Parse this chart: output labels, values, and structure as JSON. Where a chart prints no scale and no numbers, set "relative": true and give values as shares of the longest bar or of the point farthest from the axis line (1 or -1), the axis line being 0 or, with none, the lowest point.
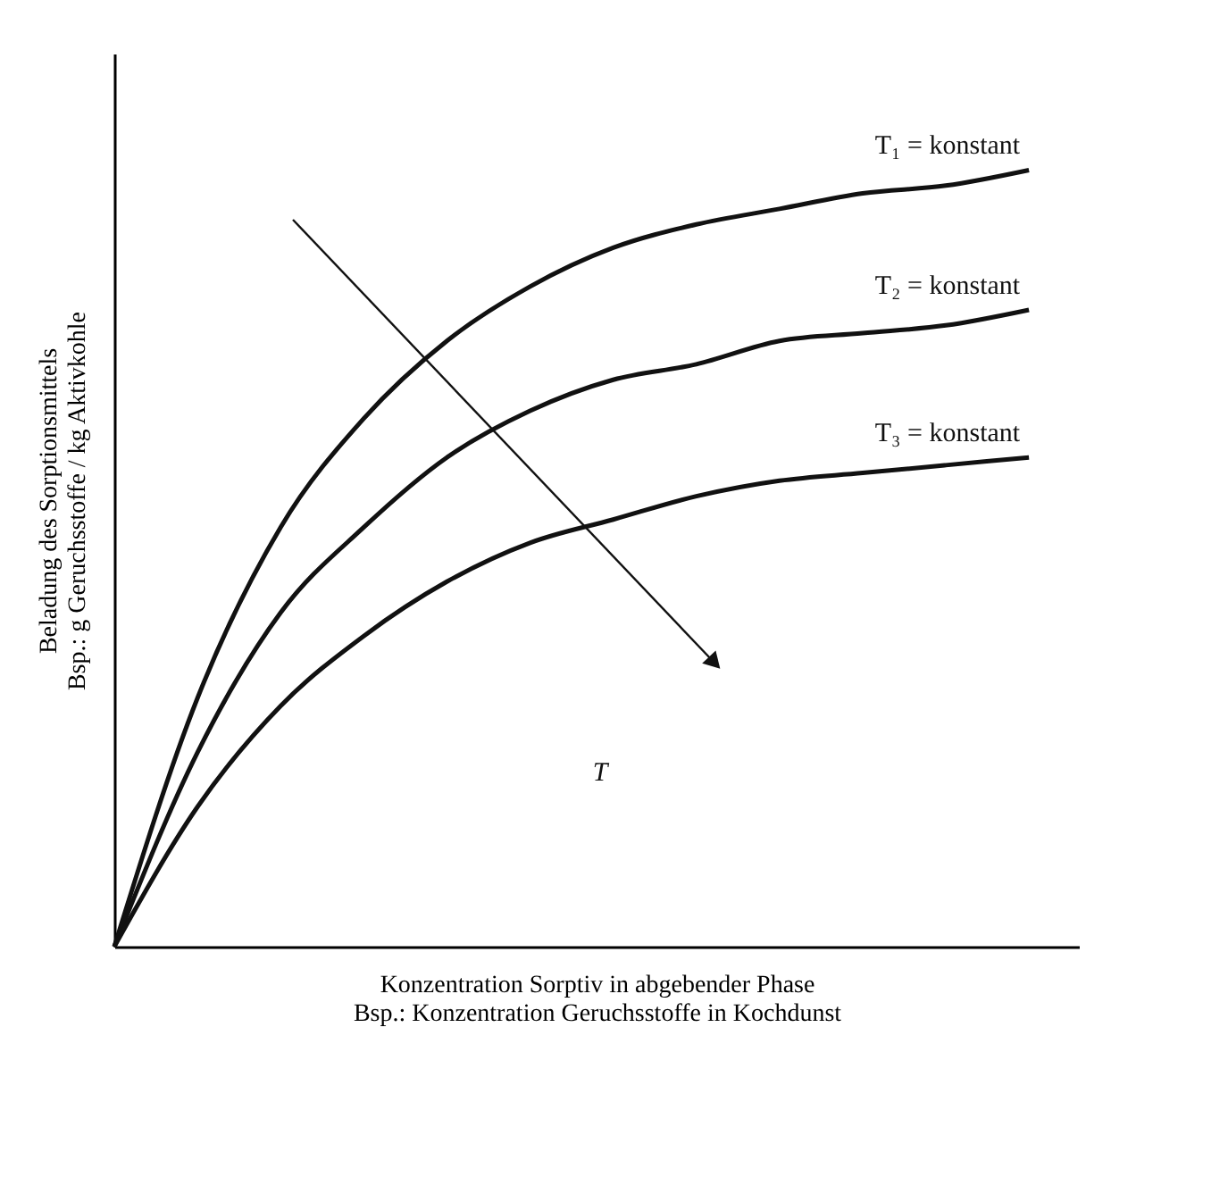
{
  "chart_data": {
    "type": "line",
    "relative": true,
    "xlabel": "Konzentration Sorptiv in abgebender Phase\nBsp.: Konzentration Geruchsstoffe in Kochdunst",
    "ylabel": "Beladung des Sorptionsmittels\nBsp.: g Geruchsstoffe / kg Aktivkohle",
    "categories": [
      null,
      null,
      null,
      null,
      null,
      null,
      null,
      null,
      null,
      null,
      null,
      null
    ],
    "series": [
      {
        "name": "T₁ = konstant",
        "color": "#111111",
        "values": [
          0,
          0.32,
          0.54,
          0.68,
          0.78,
          0.85,
          0.9,
          0.93,
          0.95,
          0.97,
          0.98,
          1.0
        ]
      },
      {
        "name": "T₂ = konstant",
        "color": "#111111",
        "values": [
          0,
          0.25,
          0.43,
          0.54,
          0.63,
          0.69,
          0.73,
          0.75,
          0.78,
          0.79,
          0.8,
          0.82
        ]
      },
      {
        "name": "T₃ = konstant",
        "color": "#111111",
        "values": [
          0,
          0.18,
          0.31,
          0.4,
          0.47,
          0.52,
          0.55,
          0.58,
          0.6,
          0.61,
          0.62,
          0.63
        ]
      }
    ],
    "annotations": [
      "T"
    ]
  }
}
